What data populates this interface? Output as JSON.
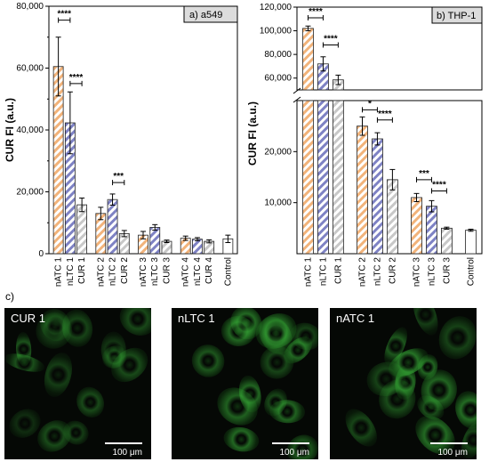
{
  "colors": {
    "nATC": "#f2b37a",
    "nLTC": "#7e82c4",
    "CUR": "#c8c8c8",
    "Control": "#ffffff",
    "panel_tag_bg": "#dcdcdc",
    "cell_green": "#2fb32f"
  },
  "chart_data": [
    {
      "type": "bar",
      "panel_tag": "a) a549",
      "ylabel": "CUR  FI (a.u.)",
      "ylim": [
        0,
        80000
      ],
      "yticks": [
        "0",
        "20,000",
        "40,000",
        "60,000",
        "80,000"
      ],
      "categories": [
        "nATC 1",
        "nLTC 1",
        "CUR 1",
        "nATC 2",
        "nLTC 2",
        "CUR 2",
        "nATC 3",
        "nLTC 3",
        "CUR 3",
        "nATC 4",
        "nLTC 4",
        "CUR 4",
        "Control"
      ],
      "groups": [
        "nATC",
        "nLTC",
        "CUR",
        "nATC",
        "nLTC",
        "CUR",
        "nATC",
        "nLTC",
        "CUR",
        "nATC",
        "nLTC",
        "CUR",
        "Control"
      ],
      "values": [
        60500,
        42300,
        15800,
        13000,
        17500,
        6500,
        6000,
        8500,
        4000,
        5000,
        4700,
        4000,
        4800
      ],
      "errors": [
        9500,
        10000,
        2200,
        2000,
        1800,
        1000,
        1200,
        900,
        400,
        700,
        500,
        500,
        1200
      ],
      "significance": [
        {
          "from": 0,
          "to": 1,
          "label": "****",
          "y": 75500
        },
        {
          "from": 1,
          "to": 2,
          "label": "****",
          "y": 55000
        },
        {
          "from": 4,
          "to": 5,
          "label": "***",
          "y": 23000
        }
      ]
    },
    {
      "type": "bar",
      "panel_tag": "b) THP-1",
      "ylabel": "CUR  FI (a.u.)",
      "broken_axis": true,
      "upper_ylim": [
        50000,
        120000
      ],
      "upper_yticks": [
        "60,000",
        "80,000",
        "100,000",
        "120,000"
      ],
      "lower_ylim": [
        0,
        30000
      ],
      "lower_yticks": [
        "10,000",
        "20,000"
      ],
      "categories": [
        "nATC 1",
        "nLTC 1",
        "CUR 1",
        "nATC 2",
        "nLTC 2",
        "CUR 2",
        "nATC 3",
        "nLTC 3",
        "CUR 3",
        "Control"
      ],
      "groups": [
        "nATC",
        "nLTC",
        "CUR",
        "nATC",
        "nLTC",
        "CUR",
        "nATC",
        "nLTC",
        "CUR",
        "Control"
      ],
      "values": [
        102000,
        72000,
        58500,
        25000,
        22500,
        14500,
        11000,
        9300,
        5000,
        4600
      ],
      "errors": [
        2000,
        6000,
        4000,
        1800,
        1200,
        2000,
        800,
        1100,
        200,
        200
      ],
      "significance": [
        {
          "from": 0,
          "to": 1,
          "label": "****",
          "y": 111000
        },
        {
          "from": 1,
          "to": 2,
          "label": "****",
          "y": 88000
        },
        {
          "from": 3,
          "to": 4,
          "label": "*",
          "y": 28200
        },
        {
          "from": 4,
          "to": 5,
          "label": "****",
          "y": 26200
        },
        {
          "from": 6,
          "to": 7,
          "label": "***",
          "y": 14500
        },
        {
          "from": 7,
          "to": 8,
          "label": "****",
          "y": 12300
        }
      ]
    }
  ],
  "panel_c": {
    "label": "c)",
    "images": [
      {
        "label": "CUR 1",
        "scale": "100 μm"
      },
      {
        "label": "nLTC 1",
        "scale": "100 μm"
      },
      {
        "label": "nATC 1",
        "scale": "100 μm"
      }
    ]
  }
}
